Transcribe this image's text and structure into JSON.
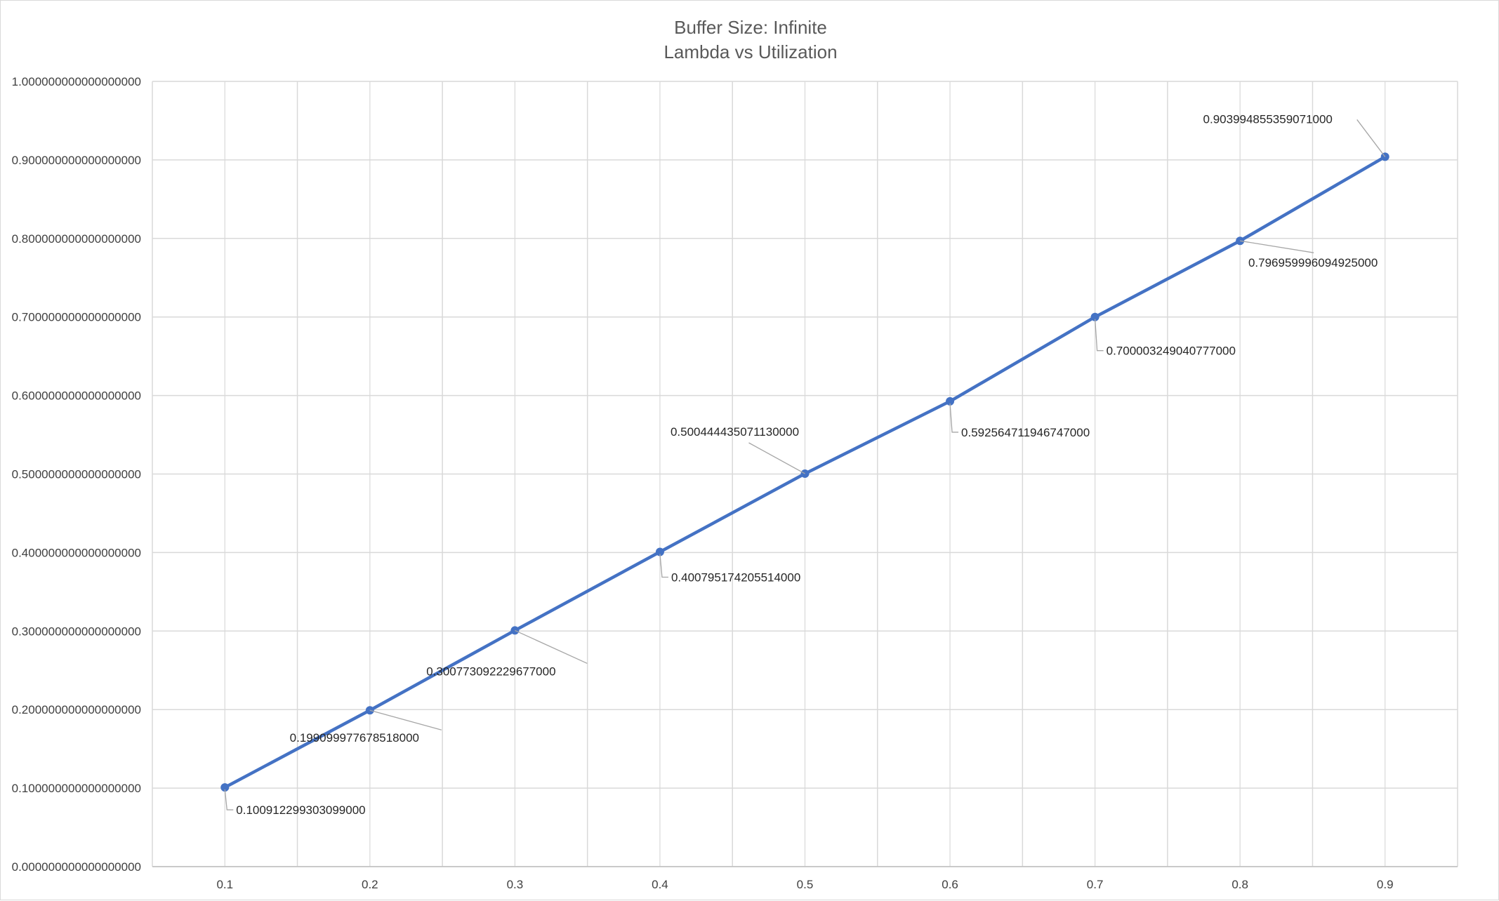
{
  "chart_data": {
    "type": "line",
    "title": "Buffer Size: Infinite",
    "subtitle": "Lambda vs Utilization",
    "xlabel": "",
    "ylabel": "",
    "x": [
      0.1,
      0.2,
      0.3,
      0.4,
      0.5,
      0.6,
      0.7,
      0.8,
      0.9
    ],
    "x_tick_labels": [
      "0.1",
      "0.2",
      "0.3",
      "0.4",
      "0.5",
      "0.6",
      "0.7",
      "0.8",
      "0.9"
    ],
    "series": [
      {
        "values": [
          0.100912299303099,
          0.199099977678518,
          0.300773092229677,
          0.400795174205514,
          0.50044443507113,
          0.592564711946747,
          0.700003249040777,
          0.796959996094925,
          0.903994855359071
        ],
        "data_labels": [
          "0.100912299303099000",
          "0.199099977678518000",
          "0.300773092229677000",
          "0.400795174205514000",
          "0.500444435071130000",
          "0.592564711946747000",
          "0.700003249040777000",
          "0.796959996094925000",
          "0.903994855359071000"
        ],
        "color": "#4472c4"
      }
    ],
    "ylim": [
      0,
      1
    ],
    "y_ticks": [
      0,
      0.1,
      0.2,
      0.3,
      0.4,
      0.5,
      0.6,
      0.7,
      0.8,
      0.9,
      1
    ],
    "y_tick_labels": [
      "0.000000000000000000",
      "0.100000000000000000",
      "0.200000000000000000",
      "0.300000000000000000",
      "0.400000000000000000",
      "0.500000000000000000",
      "0.600000000000000000",
      "0.700000000000000000",
      "0.800000000000000000",
      "0.900000000000000000",
      "1.000000000000000000"
    ],
    "grid": true,
    "legend": "none",
    "colors": {
      "line": "#4472c4",
      "grid": "#d9d9d9",
      "leader": "#a6a6a6"
    }
  }
}
